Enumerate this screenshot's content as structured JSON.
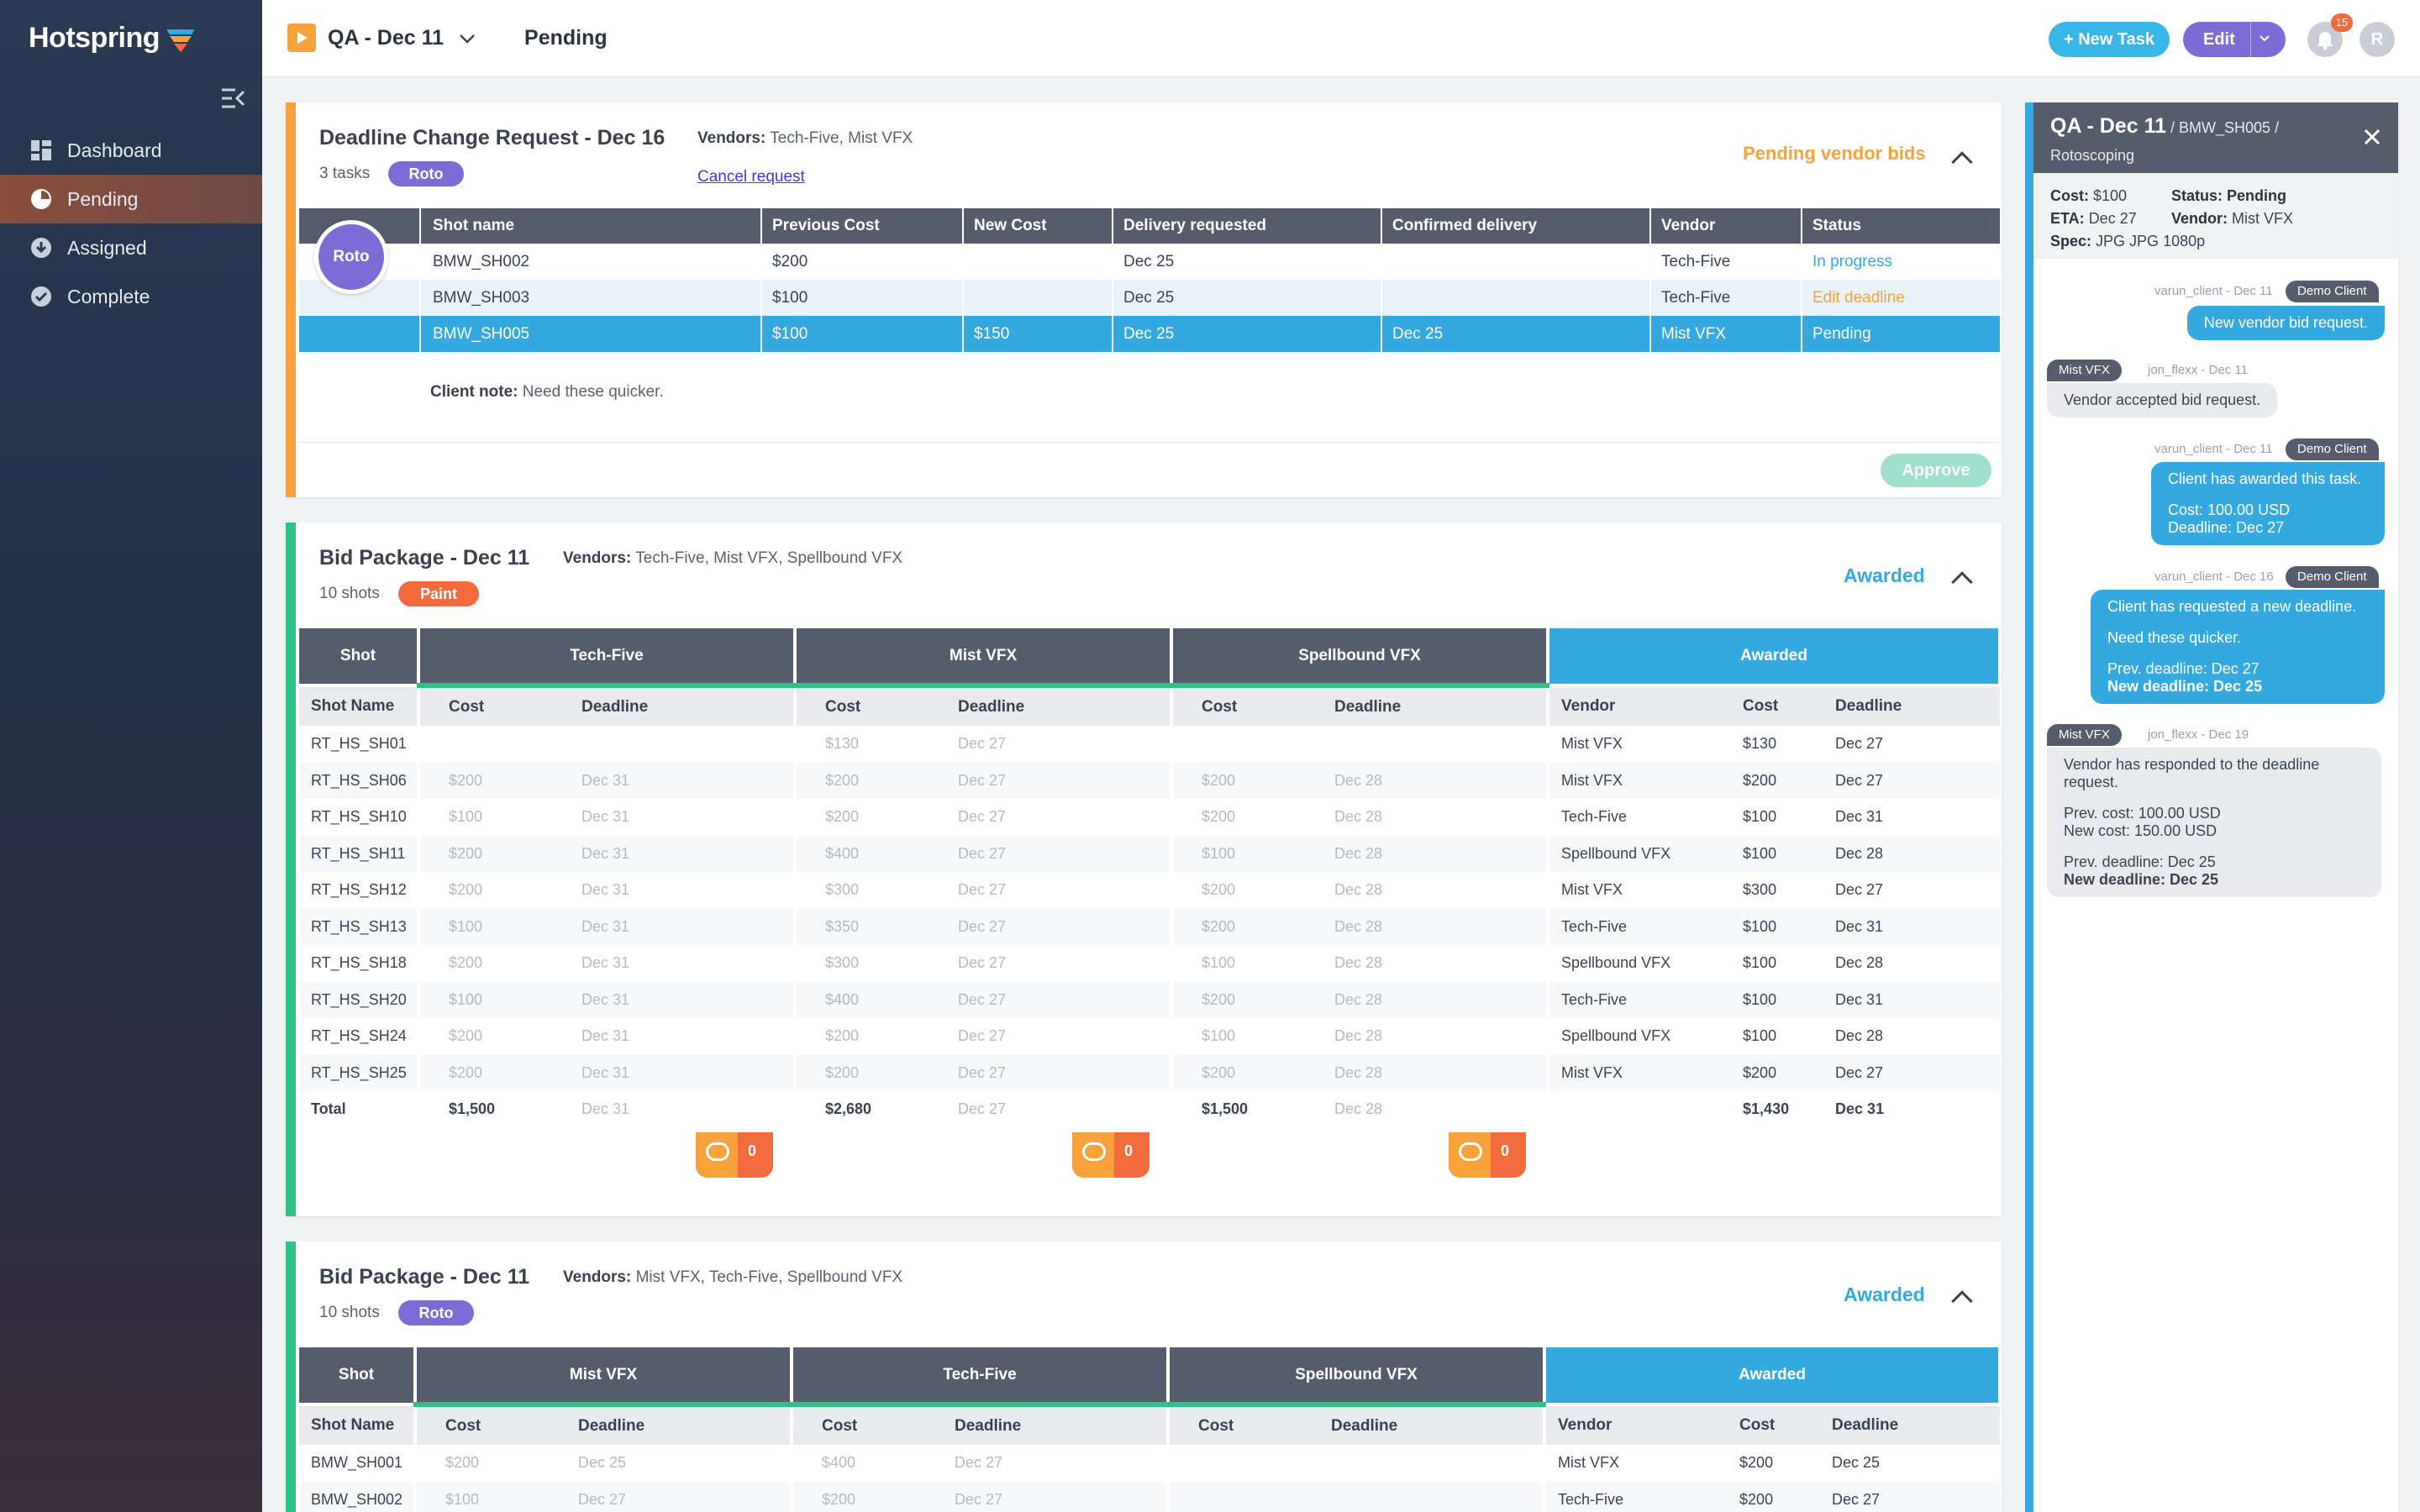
{
  "app": {
    "name": "Hotspring"
  },
  "sidebar": {
    "items": [
      {
        "label": "Dashboard",
        "icon": "dashboard-icon"
      },
      {
        "label": "Pending",
        "icon": "pie-chart-icon"
      },
      {
        "label": "Assigned",
        "icon": "download-circle-icon"
      },
      {
        "label": "Complete",
        "icon": "check-circle-icon"
      }
    ]
  },
  "header": {
    "title": "QA - Dec 11",
    "status": "Pending",
    "new_task": "+ New Task",
    "edit": "Edit",
    "notifications": "15",
    "avatar": "R"
  },
  "dcr": {
    "title": "Deadline Change Request - Dec 16",
    "vendors_label": "Vendors:",
    "vendors": "Tech-Five, Mist VFX",
    "tasks": "3 tasks",
    "pill": "Roto",
    "cancel": "Cancel request",
    "state": "Pending vendor bids",
    "circle": "Roto",
    "columns": [
      "Shot name",
      "Previous Cost",
      "New Cost",
      "Delivery requested",
      "Confirmed delivery",
      "Vendor",
      "Status"
    ],
    "rows": [
      {
        "shot": "BMW_SH002",
        "prev": "$200",
        "new": "",
        "req": "Dec 25",
        "conf": "",
        "vendor": "Tech-Five",
        "status": "In progress",
        "status_color": "#34a9df"
      },
      {
        "shot": "BMW_SH003",
        "prev": "$100",
        "new": "",
        "req": "Dec 25",
        "conf": "",
        "vendor": "Tech-Five",
        "status": "Edit deadline",
        "status_color": "#f7a23b"
      },
      {
        "shot": "BMW_SH005",
        "prev": "$100",
        "new": "$150",
        "req": "Dec 25",
        "conf": "Dec 25",
        "vendor": "Mist VFX",
        "status": "Pending",
        "status_color": "#ffffff"
      }
    ],
    "note_label": "Client note:",
    "note": "Need these quicker.",
    "approve": "Approve"
  },
  "bid1": {
    "title": "Bid Package - Dec 11",
    "vendors_label": "Vendors:",
    "vendors": "Tech-Five, Mist VFX, Spellbound VFX",
    "meta": "10 shots",
    "pill": "Paint",
    "state": "Awarded",
    "groups": [
      "Shot",
      "Tech-Five",
      "Mist VFX",
      "Spellbound VFX",
      "Awarded"
    ],
    "sub": [
      "Shot Name",
      "Cost",
      "Deadline",
      "Cost",
      "Deadline",
      "Cost",
      "Deadline",
      "Vendor",
      "Cost",
      "Deadline"
    ],
    "rows": [
      [
        "RT_HS_SH01",
        "",
        "",
        "$130",
        "Dec 27",
        "",
        "",
        "Mist VFX",
        "$130",
        "Dec 27"
      ],
      [
        "RT_HS_SH06",
        "$200",
        "Dec 31",
        "$200",
        "Dec 27",
        "$200",
        "Dec 28",
        "Mist VFX",
        "$200",
        "Dec 27"
      ],
      [
        "RT_HS_SH10",
        "$100",
        "Dec 31",
        "$200",
        "Dec 27",
        "$200",
        "Dec 28",
        "Tech-Five",
        "$100",
        "Dec 31"
      ],
      [
        "RT_HS_SH11",
        "$200",
        "Dec 31",
        "$400",
        "Dec 27",
        "$100",
        "Dec 28",
        "Spellbound VFX",
        "$100",
        "Dec 28"
      ],
      [
        "RT_HS_SH12",
        "$200",
        "Dec 31",
        "$300",
        "Dec 27",
        "$200",
        "Dec 28",
        "Mist VFX",
        "$300",
        "Dec 27"
      ],
      [
        "RT_HS_SH13",
        "$100",
        "Dec 31",
        "$350",
        "Dec 27",
        "$200",
        "Dec 28",
        "Tech-Five",
        "$100",
        "Dec 31"
      ],
      [
        "RT_HS_SH18",
        "$200",
        "Dec 31",
        "$300",
        "Dec 27",
        "$100",
        "Dec 28",
        "Spellbound VFX",
        "$100",
        "Dec 28"
      ],
      [
        "RT_HS_SH20",
        "$100",
        "Dec 31",
        "$400",
        "Dec 27",
        "$200",
        "Dec 28",
        "Tech-Five",
        "$100",
        "Dec 31"
      ],
      [
        "RT_HS_SH24",
        "$200",
        "Dec 31",
        "$200",
        "Dec 27",
        "$100",
        "Dec 28",
        "Spellbound VFX",
        "$100",
        "Dec 28"
      ],
      [
        "RT_HS_SH25",
        "$200",
        "Dec 31",
        "$200",
        "Dec 27",
        "$200",
        "Dec 28",
        "Mist VFX",
        "$200",
        "Dec 27"
      ]
    ],
    "total": [
      "Total",
      "$1,500",
      "Dec 31",
      "$2,680",
      "Dec 27",
      "$1,500",
      "Dec 28",
      "",
      "$1,430",
      "Dec 31"
    ],
    "chat_counts": [
      "0",
      "0",
      "0"
    ]
  },
  "bid2": {
    "title": "Bid Package - Dec 11",
    "vendors_label": "Vendors:",
    "vendors": "Mist VFX, Tech-Five, Spellbound VFX",
    "meta": "10 shots",
    "pill": "Roto",
    "state": "Awarded",
    "groups": [
      "Shot",
      "Mist VFX",
      "Tech-Five",
      "Spellbound VFX",
      "Awarded"
    ],
    "sub": [
      "Shot Name",
      "Cost",
      "Deadline",
      "Cost",
      "Deadline",
      "Cost",
      "Deadline",
      "Vendor",
      "Cost",
      "Deadline"
    ],
    "rows": [
      [
        "BMW_SH001",
        "$200",
        "Dec 25",
        "$400",
        "Dec 27",
        "",
        "",
        "Mist VFX",
        "$200",
        "Dec 25"
      ],
      [
        "BMW_SH002",
        "$100",
        "Dec 27",
        "$200",
        "Dec 27",
        "",
        "",
        "Tech-Five",
        "$200",
        "Dec 27"
      ]
    ]
  },
  "panel": {
    "title": "QA - Dec 11",
    "path": " / BMW_SH005 /",
    "sub": "Rotoscoping",
    "cost_label": "Cost:",
    "cost": "$100",
    "status_label": "Status:",
    "status": "Pending",
    "eta_label": "ETA:",
    "eta": "Dec 27",
    "vendor_label": "Vendor:",
    "vendor": "Mist VFX",
    "spec_label": "Spec:",
    "spec": "JPG JPG 1080p",
    "messages": [
      {
        "meta": "varun_client - Dec 11",
        "tag": "Demo Client",
        "lines": [
          "New vendor bid request."
        ]
      },
      {
        "meta": "jon_flexx - Dec 11",
        "tag": "Mist VFX",
        "lines": [
          "Vendor accepted bid request."
        ]
      },
      {
        "meta": "varun_client - Dec 11",
        "tag": "Demo Client",
        "lines": [
          "Client has awarded this task.",
          "Cost: 100.00 USD",
          "Deadline: Dec 27"
        ]
      },
      {
        "meta": "varun_client - Dec 16",
        "tag": "Demo Client",
        "lines": [
          "Client has requested a new deadline.",
          "Need these quicker.",
          "Prev. deadline: Dec 27",
          "New deadline: Dec 25"
        ]
      },
      {
        "meta": "jon_flexx - Dec 19",
        "tag": "Mist VFX",
        "lines": [
          "Vendor has responded to the deadline",
          "request.",
          "Prev. cost: 100.00 USD",
          "New cost: 150.00 USD",
          "Prev. deadline: Dec 25",
          "New deadline: Dec 25"
        ]
      }
    ]
  }
}
